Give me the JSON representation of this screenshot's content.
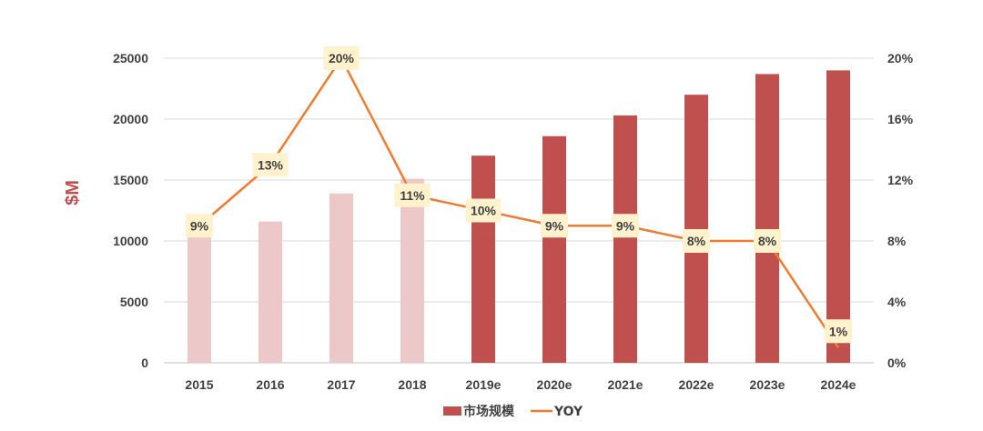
{
  "chart_data": {
    "type": "bar+line",
    "categories": [
      "2015",
      "2016",
      "2017",
      "2018",
      "2019e",
      "2020e",
      "2021e",
      "2022e",
      "2023e",
      "2024e"
    ],
    "series": [
      {
        "name": "市场规模",
        "type": "bar",
        "axis": "left",
        "values": [
          10300,
          11600,
          13900,
          15100,
          17000,
          18600,
          20300,
          22000,
          23700,
          24000
        ],
        "colors": [
          "#ecc8c8",
          "#ecc8c8",
          "#ecc8c8",
          "#ecc8c8",
          "#c0504d",
          "#c0504d",
          "#c0504d",
          "#c0504d",
          "#c0504d",
          "#c0504d"
        ]
      },
      {
        "name": "YOY",
        "type": "line",
        "axis": "right",
        "values": [
          9,
          13,
          20,
          11,
          10,
          9,
          9,
          8,
          8,
          1
        ],
        "labels": [
          "9%",
          "13%",
          "20%",
          "11%",
          "10%",
          "9%",
          "9%",
          "8%",
          "8%",
          "1%"
        ],
        "color": "#ed7d31"
      }
    ],
    "ylabel": "$M",
    "ylim": [
      0,
      25000
    ],
    "yticks": [
      "0",
      "5000",
      "10000",
      "15000",
      "20000",
      "25000"
    ],
    "y2lim": [
      0,
      20
    ],
    "y2ticks": [
      "0%",
      "4%",
      "8%",
      "12%",
      "16%",
      "20%"
    ],
    "grid": true,
    "legend_position": "bottom-center",
    "label_box_color": "#fff2cc"
  }
}
